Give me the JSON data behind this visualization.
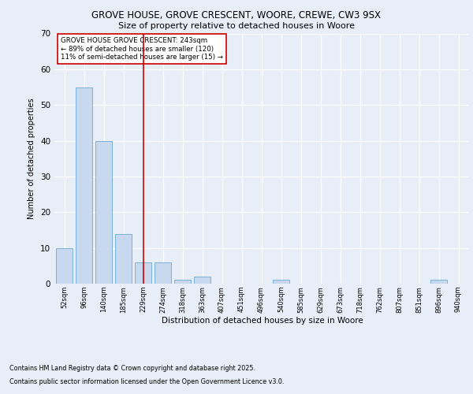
{
  "title1": "GROVE HOUSE, GROVE CRESCENT, WOORE, CREWE, CW3 9SX",
  "title2": "Size of property relative to detached houses in Woore",
  "xlabel": "Distribution of detached houses by size in Woore",
  "ylabel": "Number of detached properties",
  "categories": [
    "52sqm",
    "96sqm",
    "140sqm",
    "185sqm",
    "229sqm",
    "274sqm",
    "318sqm",
    "363sqm",
    "407sqm",
    "451sqm",
    "496sqm",
    "540sqm",
    "585sqm",
    "629sqm",
    "673sqm",
    "718sqm",
    "762sqm",
    "807sqm",
    "851sqm",
    "896sqm",
    "940sqm"
  ],
  "values": [
    10,
    55,
    40,
    14,
    6,
    6,
    1,
    2,
    0,
    0,
    0,
    1,
    0,
    0,
    0,
    0,
    0,
    0,
    0,
    1,
    0
  ],
  "bar_color": "#c8d8ee",
  "bar_edge_color": "#7ab0d8",
  "reference_line_x": 4,
  "reference_line_color": "#cc0000",
  "annotation_text": "GROVE HOUSE GROVE CRESCENT: 243sqm\n← 89% of detached houses are smaller (120)\n11% of semi-detached houses are larger (15) →",
  "annotation_box_facecolor": "#ffffff",
  "annotation_box_edgecolor": "#cc0000",
  "ylim": [
    0,
    70
  ],
  "yticks": [
    0,
    10,
    20,
    30,
    40,
    50,
    60,
    70
  ],
  "background_color": "#e8eef8",
  "grid_color": "#ffffff",
  "footer_line1": "Contains HM Land Registry data © Crown copyright and database right 2025.",
  "footer_line2": "Contains public sector information licensed under the Open Government Licence v3.0."
}
